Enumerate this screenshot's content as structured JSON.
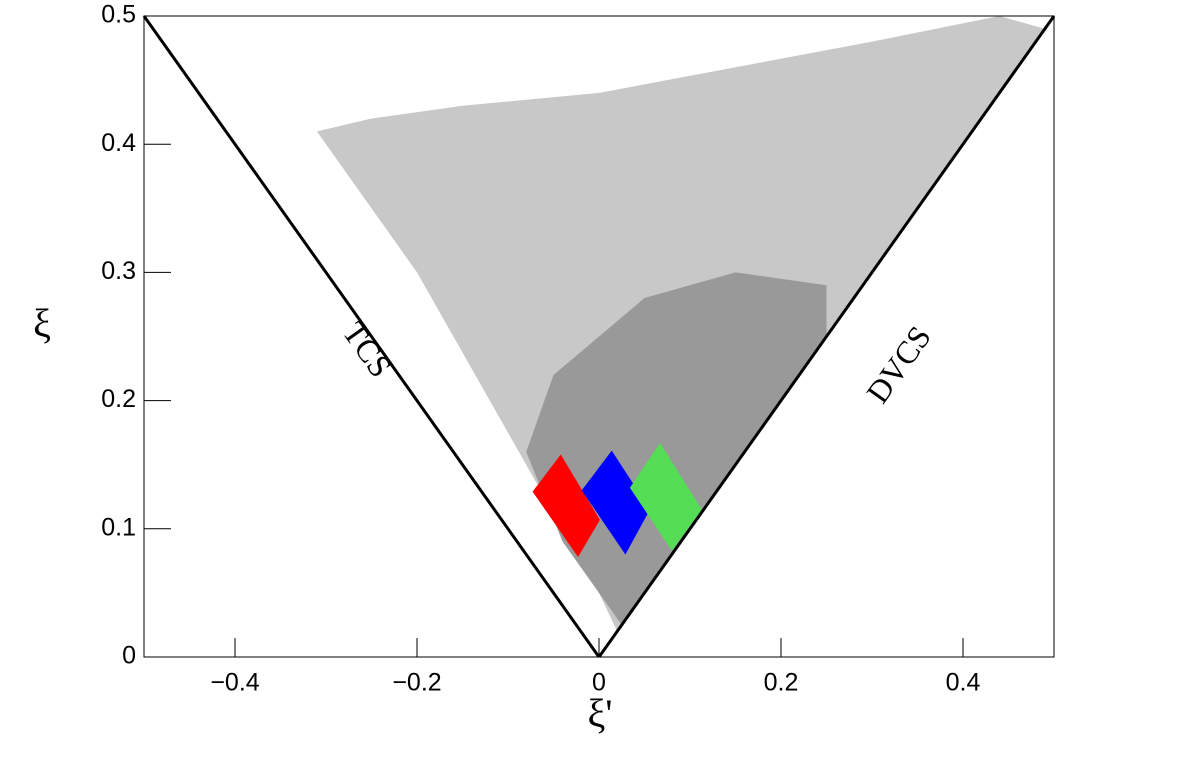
{
  "chart_data": {
    "type": "scatter",
    "x_label": "ξ'",
    "y_label": "ξ",
    "xlim": [
      -0.5,
      0.5
    ],
    "ylim": [
      0,
      0.5
    ],
    "xticks": [
      {
        "value": -0.4,
        "label": "−0.4"
      },
      {
        "value": -0.2,
        "label": "−0.2"
      },
      0,
      0.2,
      0.4
    ],
    "yticks": [
      0,
      0.1,
      0.2,
      0.3,
      0.4,
      0.5
    ],
    "lines": [
      {
        "name": "TCS",
        "color": "#000000",
        "x": [
          -0.5,
          0
        ],
        "y": [
          0.5,
          0
        ]
      },
      {
        "name": "DVCS",
        "color": "#000000",
        "x": [
          0,
          0.5
        ],
        "y": [
          0,
          0.5
        ]
      }
    ],
    "series": [
      {
        "color": "#c8c8c8",
        "x": [
          -0.31,
          -0.25,
          -0.15,
          0.0,
          0.15,
          0.3,
          0.44,
          0.49,
          0.02,
          0.0,
          -0.08,
          -0.2
        ],
        "y": [
          0.41,
          0.42,
          0.43,
          0.44,
          0.46,
          0.48,
          0.5,
          0.49,
          0.02,
          0.05,
          0.15,
          0.3
        ]
      },
      {
        "color": "#999999",
        "x": [
          -0.08,
          -0.04,
          0.02,
          0.025,
          0.25,
          0.25,
          0.15,
          0.05,
          -0.05
        ],
        "y": [
          0.16,
          0.09,
          0.03,
          0.025,
          0.25,
          0.29,
          0.3,
          0.28,
          0.22
        ]
      },
      {
        "color": "#ff0000",
        "x": [
          -0.073,
          -0.042,
          0.001,
          -0.023
        ],
        "y": [
          0.129,
          0.158,
          0.107,
          0.078
        ]
      },
      {
        "color": "#0000ff",
        "x": [
          -0.019,
          0.014,
          0.056,
          0.029
        ],
        "y": [
          0.13,
          0.161,
          0.115,
          0.08
        ]
      },
      {
        "color": "#55dd55",
        "x": [
          0.034,
          0.067,
          0.113,
          0.08
        ],
        "y": [
          0.132,
          0.167,
          0.115,
          0.083
        ]
      }
    ]
  }
}
